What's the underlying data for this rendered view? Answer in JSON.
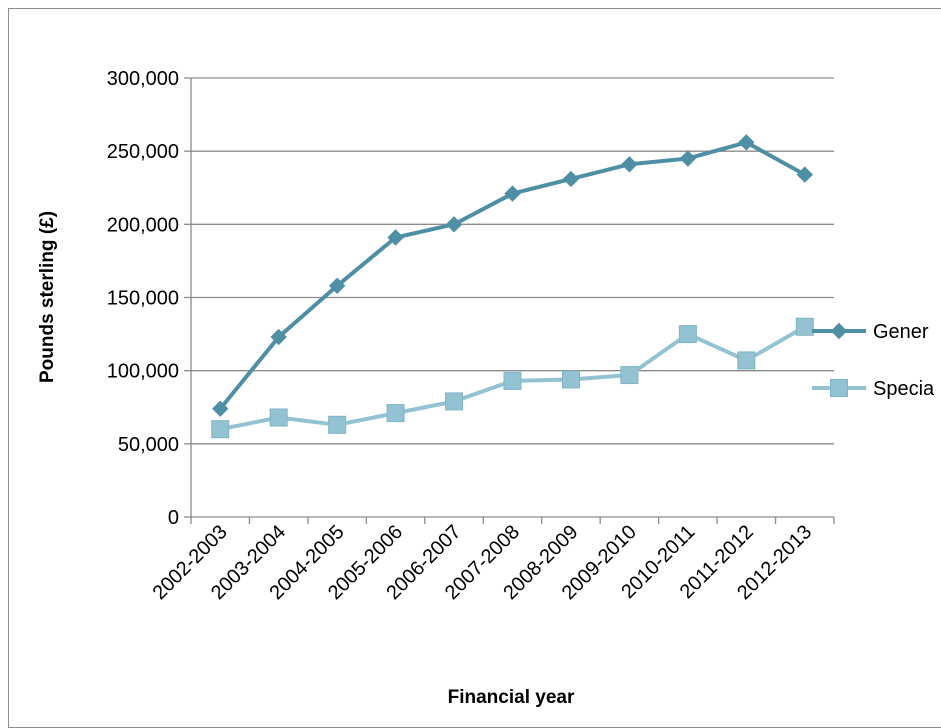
{
  "chart_data": {
    "type": "line",
    "title": "",
    "xlabel": "Financial year",
    "ylabel": "Pounds sterling (£)",
    "ylim": [
      0,
      300000
    ],
    "yticks": [
      0,
      50000,
      100000,
      150000,
      200000,
      250000,
      300000
    ],
    "ytick_labels": [
      "0",
      "50,000",
      "100,000",
      "150,000",
      "200,000",
      "250,000",
      "300,000"
    ],
    "grid": "horizontal",
    "legend_position": "right",
    "categories": [
      "2002-2003",
      "2003-2004",
      "2004-2005",
      "2005-2006",
      "2006-2007",
      "2007-2008",
      "2008-2009",
      "2009-2010",
      "2010-2011",
      "2011-2012",
      "2012-2013"
    ],
    "series": [
      {
        "name": "Gener",
        "marker": "diamond",
        "color": "#4f8fa6",
        "values": [
          74000,
          123000,
          158000,
          191000,
          200000,
          221000,
          231000,
          241000,
          245000,
          256000,
          234000
        ]
      },
      {
        "name": "Specia",
        "marker": "square",
        "color": "#93c3d3",
        "values": [
          60000,
          68000,
          63000,
          71000,
          79000,
          93000,
          94000,
          97000,
          125000,
          107000,
          130000
        ]
      }
    ]
  }
}
